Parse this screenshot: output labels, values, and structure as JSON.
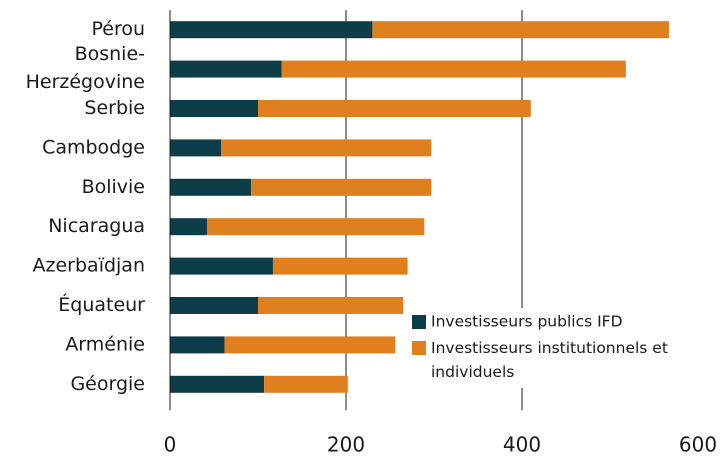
{
  "chart_data": {
    "type": "stacked_barh",
    "categories": [
      "Pérou",
      "Bosnie-Herzégovine",
      "Serbie",
      "Cambodge",
      "Bolivie",
      "Nicaragua",
      "Azerbaïdjan",
      "Équateur",
      "Arménie",
      "Géorgie"
    ],
    "series": [
      {
        "name": "Investisseurs publics IFD",
        "color": "#0e3d4a",
        "values": [
          230,
          127,
          100,
          58,
          92,
          42,
          117,
          100,
          62,
          107
        ]
      },
      {
        "name": "Investisseurs institutionnels et individuels",
        "color": "#e07f1e",
        "values": [
          337,
          391,
          310,
          239,
          205,
          247,
          153,
          165,
          194,
          95
        ]
      }
    ],
    "xlim": [
      0,
      600
    ],
    "xticks": [
      0,
      200,
      400,
      600
    ],
    "grid": true,
    "legend": "lower right"
  }
}
